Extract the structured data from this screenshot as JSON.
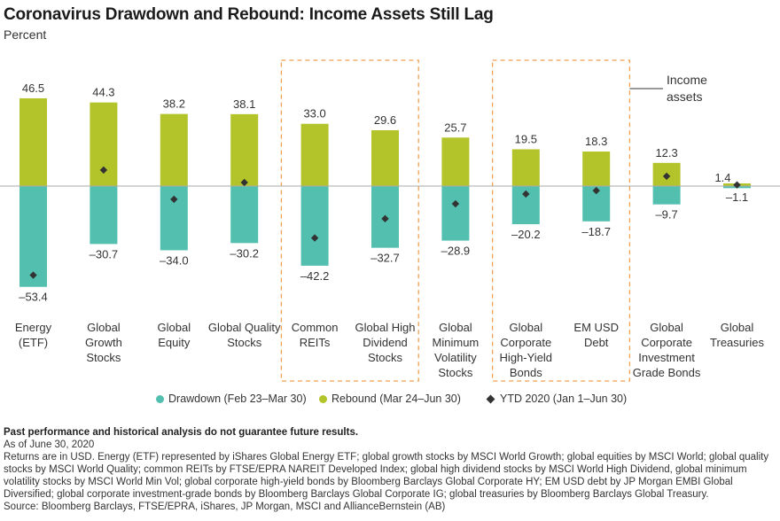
{
  "header": {
    "title": "Coronavirus Drawdown and Rebound: Income Assets Still Lag",
    "subtitle": "Percent"
  },
  "chart_data": {
    "type": "bar",
    "categories": [
      [
        "Energy",
        "(ETF)"
      ],
      [
        "Global",
        "Growth",
        "Stocks"
      ],
      [
        "Global",
        "Equity"
      ],
      [
        "Global Quality",
        "Stocks"
      ],
      [
        "Common",
        "REITs"
      ],
      [
        "Global High",
        "Dividend",
        "Stocks"
      ],
      [
        "Global",
        "Minimum",
        "Volatility",
        "Stocks"
      ],
      [
        "Global",
        "Corporate",
        "High-Yield",
        "Bonds"
      ],
      [
        "EM USD",
        "Debt"
      ],
      [
        "Global",
        "Corporate",
        "Investment",
        "Grade Bonds"
      ],
      [
        "Global",
        "Treasuries"
      ]
    ],
    "series": [
      {
        "name": "Drawdown (Feb 23–Mar 30)",
        "values": [
          -53.4,
          -30.7,
          -34.0,
          -30.2,
          -42.2,
          -32.7,
          -28.9,
          -20.2,
          -18.7,
          -9.7,
          -1.1
        ],
        "labels": [
          "–53.4",
          "–30.7",
          "–34.0",
          "–30.2",
          "–42.2",
          "–32.7",
          "–28.9",
          "–20.2",
          "–18.7",
          "–9.7",
          "–1.1"
        ]
      },
      {
        "name": "Rebound (Mar 24–Jun 30)",
        "values": [
          46.5,
          44.3,
          38.2,
          38.1,
          33.0,
          29.6,
          25.7,
          19.5,
          18.3,
          12.3,
          1.4
        ],
        "labels": [
          "46.5",
          "44.3",
          "38.2",
          "38.1",
          "33.0",
          "29.6",
          "25.7",
          "19.5",
          "18.3",
          "12.3",
          "1.4"
        ]
      },
      {
        "name": "YTD 2020 (Jan 1–Jun 30)",
        "values": [
          -47.2,
          8.5,
          -7.0,
          1.9,
          -27.5,
          -17.3,
          -9.4,
          -4.2,
          -2.4,
          5.2,
          0.6
        ]
      }
    ],
    "annotation": "Income\nassets",
    "income_groups": [
      [
        4,
        5
      ],
      [
        7,
        8
      ]
    ],
    "ylim": [
      -55,
      50
    ],
    "colors": {
      "drawdown": "#52bfaf",
      "rebound": "#b2c42a",
      "ytd": "#333333",
      "highlight": "#f0a050"
    },
    "legend_placement": "bottom"
  },
  "footer": {
    "disclaimer": "Past performance and historical analysis do not guarantee future results.",
    "as_of": "As of June 30, 2020",
    "notes": "Returns are in USD. Energy (ETF) represented by iShares Global Energy ETF; global growth stocks by MSCI World Growth; global equities by MSCI World; global quality stocks by MSCI World Quality; common REITs by FTSE/EPRA NAREIT Developed Index; global high dividend stocks by MSCI World High Dividend, global minimum volatility stocks by MSCI World Min Vol; global corporate high-yield bonds by Bloomberg Barclays Global Corporate HY; EM USD debt by JP Morgan EMBI Global Diversified; global corporate investment-grade bonds by Bloomberg Barclays Global Corporate IG; global treasuries by Bloomberg Barclays Global Treasury.",
    "source": "Source: Bloomberg Barclays, FTSE/EPRA, iShares, JP Morgan, MSCI and AllianceBernstein (AB)"
  }
}
